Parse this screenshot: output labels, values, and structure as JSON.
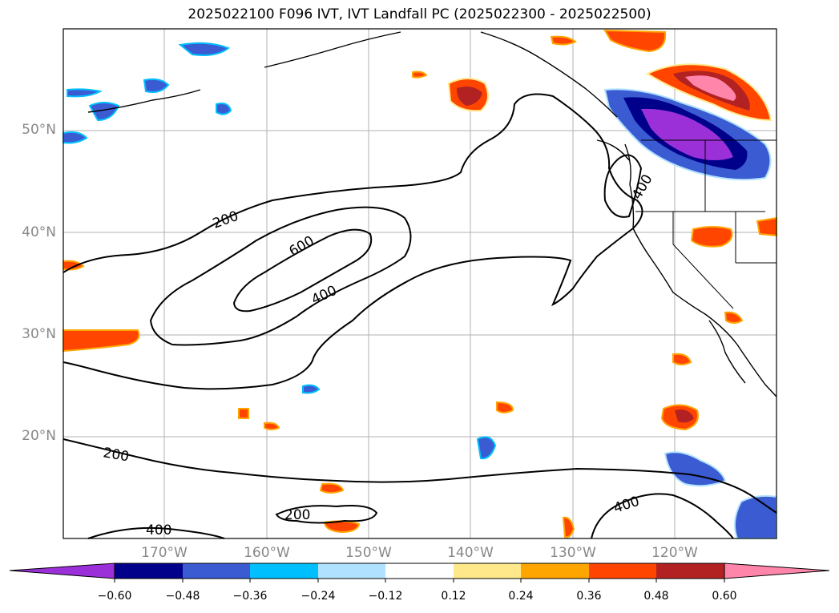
{
  "title": "2025022100 F096 IVT, IVT Landfall PC (2025022300 - 2025022500)",
  "map": {
    "lat_labels": [
      "50°N",
      "40°N",
      "30°N",
      "20°N"
    ],
    "lon_labels": [
      "170°W",
      "160°W",
      "150°W",
      "140°W",
      "130°W",
      "120°W"
    ],
    "contour_labels": [
      "200",
      "600",
      "400",
      "400",
      "200",
      "200",
      "400",
      "400"
    ],
    "grid": true
  },
  "colorbar": {
    "ticks": [
      "−0.60",
      "−0.48",
      "−0.36",
      "−0.24",
      "−0.12",
      "0.12",
      "0.24",
      "0.36",
      "0.48",
      "0.60"
    ],
    "colors": [
      "#9b30d8",
      "#00008b",
      "#3a5bd2",
      "#00bfff",
      "#b0e2ff",
      "#ffffff",
      "#ffe88a",
      "#ffa500",
      "#ff4500",
      "#b22222",
      "#ff85aa"
    ]
  }
}
